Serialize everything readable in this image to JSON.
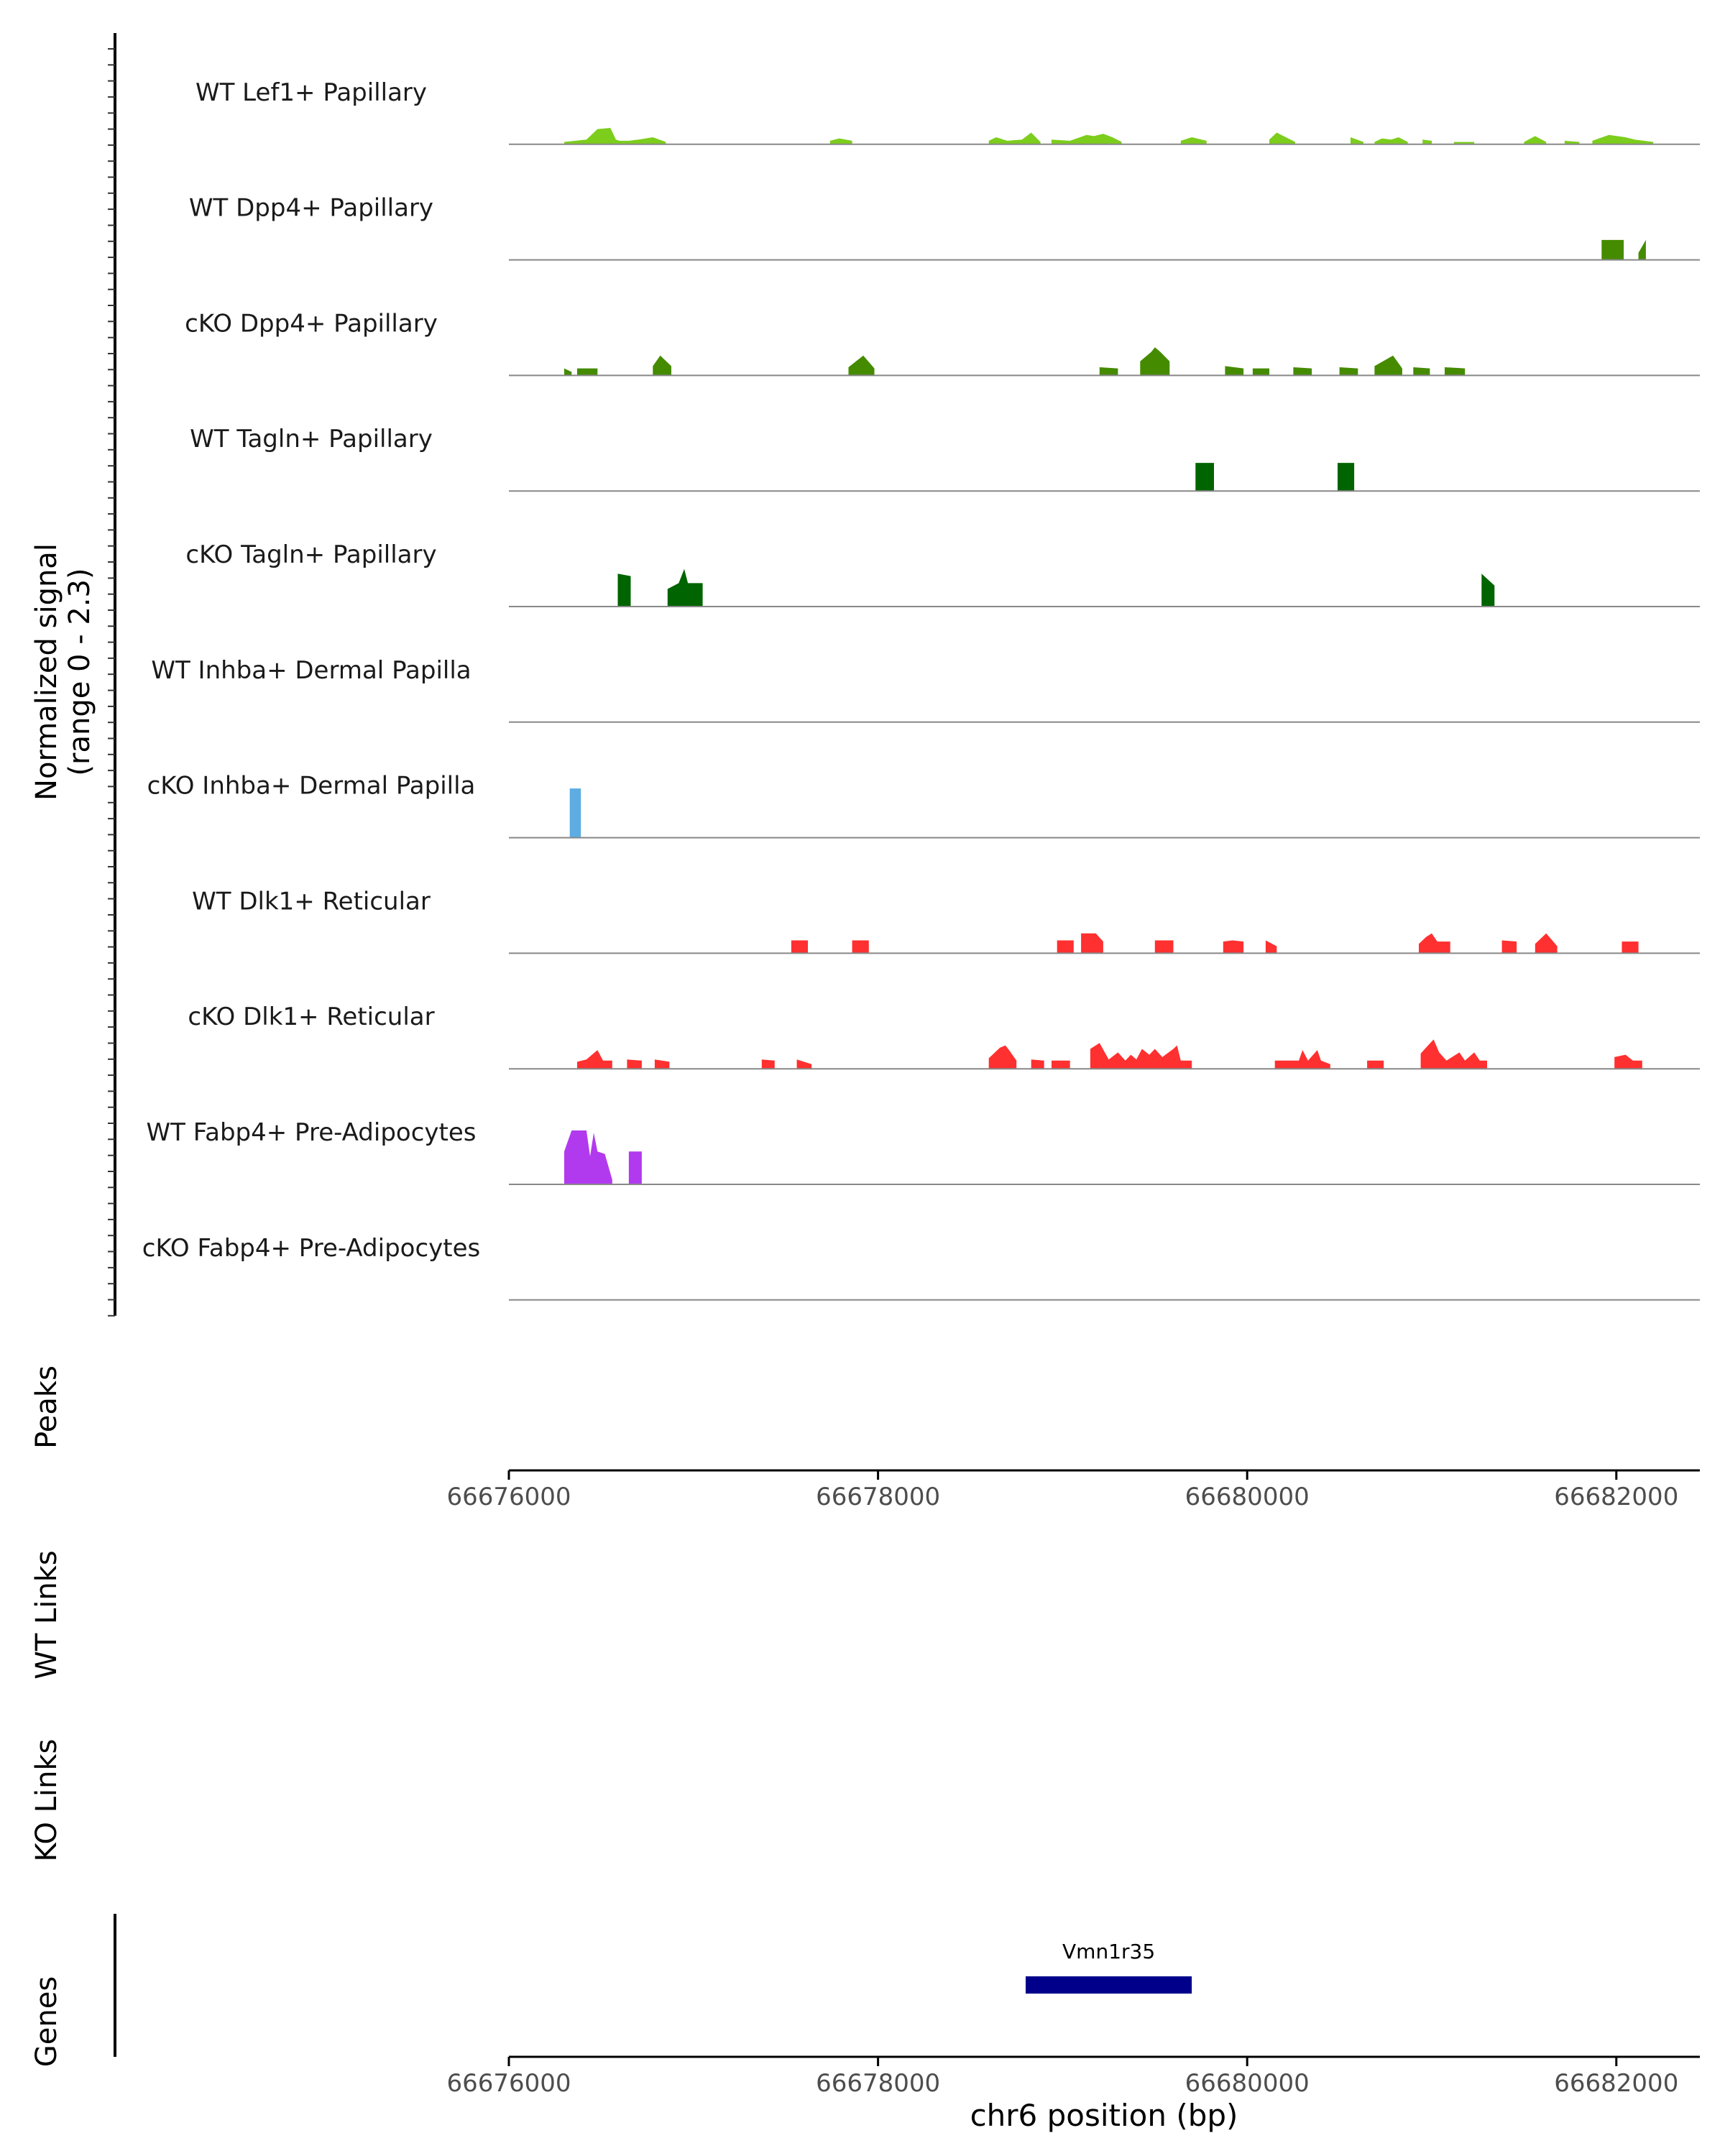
{
  "chart_data": {
    "type": "area",
    "ylabel": "Normalized signal",
    "ylabel_range": "(range 0 - 2.3)",
    "ylim": [
      0,
      2.3
    ],
    "xlim": [
      66676000,
      66682500
    ],
    "xlabel": "chr6 position (bp)",
    "ticks": [
      66676000,
      66678000,
      66680000,
      66682000
    ],
    "tick_labels": [
      "66676000",
      "66678000",
      "66680000",
      "66682000"
    ],
    "tracks": [
      {
        "name": "WT Lef1+ Papillary",
        "color": "#7CCD1C",
        "segments": [
          [
            [
              66676300,
              0.1
            ],
            [
              66676420,
              0.2
            ],
            [
              66676480,
              0.65
            ],
            [
              66676550,
              0.7
            ],
            [
              66676580,
              0.2
            ],
            [
              66676600,
              0.15
            ],
            [
              66676650,
              0.15
            ],
            [
              66676700,
              0.2
            ],
            [
              66676780,
              0.3
            ],
            [
              66676850,
              0.1
            ]
          ],
          [
            [
              66677740,
              0.15
            ],
            [
              66677790,
              0.25
            ],
            [
              66677860,
              0.15
            ]
          ],
          [
            [
              66678600,
              0.15
            ],
            [
              66678640,
              0.3
            ],
            [
              66678700,
              0.15
            ],
            [
              66678780,
              0.2
            ],
            [
              66678830,
              0.5
            ],
            [
              66678880,
              0.1
            ]
          ],
          [
            [
              66678940,
              0.2
            ],
            [
              66679040,
              0.15
            ],
            [
              66679130,
              0.4
            ],
            [
              66679170,
              0.35
            ],
            [
              66679220,
              0.45
            ],
            [
              66679270,
              0.3
            ],
            [
              66679320,
              0.1
            ]
          ],
          [
            [
              66679640,
              0.15
            ],
            [
              66679700,
              0.3
            ],
            [
              66679780,
              0.15
            ]
          ],
          [
            [
              66680120,
              0.2
            ],
            [
              66680160,
              0.5
            ],
            [
              66680260,
              0.1
            ]
          ],
          [
            [
              66680560,
              0.3
            ],
            [
              66680630,
              0.1
            ]
          ],
          [
            [
              66680690,
              0.1
            ],
            [
              66680730,
              0.25
            ],
            [
              66680780,
              0.2
            ],
            [
              66680820,
              0.3
            ],
            [
              66680870,
              0.1
            ]
          ],
          [
            [
              66680950,
              0.2
            ],
            [
              66681000,
              0.15
            ]
          ],
          [
            [
              66681120,
              0.1
            ],
            [
              66681230,
              0.1
            ]
          ],
          [
            [
              66681500,
              0.1
            ],
            [
              66681560,
              0.35
            ],
            [
              66681620,
              0.1
            ]
          ],
          [
            [
              66681720,
              0.15
            ],
            [
              66681800,
              0.1
            ]
          ],
          [
            [
              66681870,
              0.15
            ],
            [
              66681960,
              0.4
            ],
            [
              66682050,
              0.3
            ],
            [
              66682100,
              0.2
            ],
            [
              66682150,
              0.15
            ],
            [
              66682200,
              0.1
            ]
          ]
        ]
      },
      {
        "name": "WT Dpp4+ Papillary",
        "color": "#458B00",
        "segments": [
          [
            [
              66681920,
              0.85
            ],
            [
              66682040,
              0.85
            ]
          ],
          [
            [
              66682120,
              0.3
            ],
            [
              66682160,
              0.85
            ]
          ]
        ]
      },
      {
        "name": "cKO Dpp4+ Papillary",
        "color": "#458B00",
        "segments": [
          [
            [
              66676300,
              0.3
            ],
            [
              66676340,
              0.15
            ]
          ],
          [
            [
              66676370,
              0.3
            ],
            [
              66676480,
              0.3
            ]
          ],
          [
            [
              66676780,
              0.4
            ],
            [
              66676820,
              0.85
            ],
            [
              66676880,
              0.4
            ]
          ],
          [
            [
              66677840,
              0.35
            ],
            [
              66677920,
              0.85
            ],
            [
              66677980,
              0.3
            ]
          ],
          [
            [
              66679200,
              0.35
            ],
            [
              66679300,
              0.3
            ]
          ],
          [
            [
              66679420,
              0.6
            ],
            [
              66679480,
              1.0
            ],
            [
              66679500,
              1.2
            ],
            [
              66679530,
              1.0
            ],
            [
              66679580,
              0.6
            ]
          ],
          [
            [
              66679880,
              0.4
            ],
            [
              66679980,
              0.3
            ]
          ],
          [
            [
              66680030,
              0.3
            ],
            [
              66680120,
              0.3
            ]
          ],
          [
            [
              66680250,
              0.35
            ],
            [
              66680350,
              0.3
            ]
          ],
          [
            [
              66680500,
              0.35
            ],
            [
              66680600,
              0.3
            ]
          ],
          [
            [
              66680690,
              0.4
            ],
            [
              66680790,
              0.85
            ],
            [
              66680840,
              0.3
            ]
          ],
          [
            [
              66680900,
              0.35
            ],
            [
              66680990,
              0.3
            ]
          ],
          [
            [
              66681070,
              0.35
            ],
            [
              66681180,
              0.3
            ]
          ]
        ]
      },
      {
        "name": "WT Tagln+ Papillary",
        "color": "#006400",
        "segments": [
          [
            [
              66679720,
              1.2
            ],
            [
              66679820,
              1.2
            ]
          ],
          [
            [
              66680490,
              1.2
            ],
            [
              66680580,
              1.2
            ]
          ]
        ]
      },
      {
        "name": "cKO Tagln+ Papillary",
        "color": "#006400",
        "segments": [
          [
            [
              66676590,
              1.4
            ],
            [
              66676660,
              1.3
            ]
          ],
          [
            [
              66676860,
              0.75
            ],
            [
              66676920,
              1.0
            ],
            [
              66676950,
              1.6
            ],
            [
              66676970,
              1.0
            ],
            [
              66677050,
              1.0
            ]
          ],
          [
            [
              66681270,
              1.4
            ],
            [
              66681340,
              0.9
            ]
          ]
        ]
      },
      {
        "name": "WT Inhba+ Dermal Papilla",
        "color": "#5DADE2",
        "segments": []
      },
      {
        "name": "cKO Inhba+ Dermal Papilla",
        "color": "#5DADE2",
        "segments": [
          [
            [
              66676330,
              2.1
            ],
            [
              66676390,
              2.1
            ]
          ]
        ]
      },
      {
        "name": "WT Dlk1+ Reticular",
        "color": "#FF3030",
        "segments": [
          [
            [
              66677530,
              0.55
            ],
            [
              66677620,
              0.55
            ]
          ],
          [
            [
              66677860,
              0.55
            ],
            [
              66677950,
              0.55
            ]
          ],
          [
            [
              66678970,
              0.55
            ],
            [
              66679060,
              0.55
            ]
          ],
          [
            [
              66679100,
              0.85
            ],
            [
              66679180,
              0.85
            ],
            [
              66679220,
              0.5
            ]
          ],
          [
            [
              66679500,
              0.55
            ],
            [
              66679600,
              0.55
            ]
          ],
          [
            [
              66679870,
              0.5
            ],
            [
              66679920,
              0.55
            ],
            [
              66679980,
              0.5
            ]
          ],
          [
            [
              66680100,
              0.55
            ],
            [
              66680160,
              0.3
            ]
          ],
          [
            [
              66680930,
              0.4
            ],
            [
              66680970,
              0.7
            ],
            [
              66681000,
              0.85
            ],
            [
              66681030,
              0.5
            ],
            [
              66681100,
              0.5
            ]
          ],
          [
            [
              66681380,
              0.55
            ],
            [
              66681460,
              0.5
            ]
          ],
          [
            [
              66681560,
              0.4
            ],
            [
              66681620,
              0.85
            ],
            [
              66681680,
              0.3
            ]
          ],
          [
            [
              66682030,
              0.5
            ],
            [
              66682120,
              0.5
            ]
          ]
        ]
      },
      {
        "name": "cKO Dlk1+ Reticular",
        "color": "#FF3030",
        "segments": [
          [
            [
              66676370,
              0.3
            ],
            [
              66676420,
              0.4
            ],
            [
              66676450,
              0.6
            ],
            [
              66676480,
              0.8
            ],
            [
              66676510,
              0.35
            ],
            [
              66676560,
              0.35
            ]
          ],
          [
            [
              66676640,
              0.4
            ],
            [
              66676720,
              0.35
            ]
          ],
          [
            [
              66676790,
              0.4
            ],
            [
              66676870,
              0.3
            ]
          ],
          [
            [
              66677370,
              0.4
            ],
            [
              66677440,
              0.35
            ]
          ],
          [
            [
              66677560,
              0.4
            ],
            [
              66677640,
              0.2
            ]
          ],
          [
            [
              66678600,
              0.45
            ],
            [
              66678660,
              0.9
            ],
            [
              66678690,
              1.0
            ],
            [
              66678710,
              0.8
            ],
            [
              66678750,
              0.35
            ]
          ],
          [
            [
              66678830,
              0.4
            ],
            [
              66678900,
              0.35
            ]
          ],
          [
            [
              66678940,
              0.35
            ],
            [
              66679040,
              0.35
            ]
          ],
          [
            [
              66679150,
              0.85
            ],
            [
              66679200,
              1.1
            ],
            [
              66679250,
              0.4
            ],
            [
              66679300,
              0.7
            ],
            [
              66679340,
              0.35
            ],
            [
              66679370,
              0.6
            ],
            [
              66679400,
              0.4
            ],
            [
              66679430,
              0.85
            ],
            [
              66679470,
              0.6
            ],
            [
              66679500,
              0.85
            ],
            [
              66679540,
              0.5
            ],
            [
              66679600,
              0.85
            ],
            [
              66679620,
              1.0
            ],
            [
              66679640,
              0.35
            ],
            [
              66679700,
              0.35
            ]
          ],
          [
            [
              66680150,
              0.35
            ],
            [
              66680280,
              0.35
            ],
            [
              66680300,
              0.8
            ],
            [
              66680330,
              0.35
            ],
            [
              66680380,
              0.8
            ],
            [
              66680400,
              0.35
            ],
            [
              66680450,
              0.2
            ]
          ],
          [
            [
              66680650,
              0.35
            ],
            [
              66680740,
              0.35
            ]
          ],
          [
            [
              66680940,
              0.65
            ],
            [
              66680980,
              1.0
            ],
            [
              66681010,
              1.25
            ],
            [
              66681040,
              0.7
            ],
            [
              66681080,
              0.35
            ],
            [
              66681150,
              0.7
            ],
            [
              66681180,
              0.35
            ],
            [
              66681230,
              0.7
            ],
            [
              66681260,
              0.35
            ],
            [
              66681300,
              0.35
            ]
          ],
          [
            [
              66681990,
              0.5
            ],
            [
              66682050,
              0.6
            ],
            [
              66682090,
              0.35
            ],
            [
              66682140,
              0.35
            ]
          ]
        ]
      },
      {
        "name": "WT Fabp4+ Pre-Adipocytes",
        "color": "#B23AEE",
        "segments": [
          [
            [
              66676300,
              1.4
            ],
            [
              66676340,
              2.3
            ],
            [
              66676420,
              2.3
            ],
            [
              66676440,
              1.2
            ],
            [
              66676460,
              2.2
            ],
            [
              66676480,
              1.4
            ],
            [
              66676520,
              1.3
            ],
            [
              66676560,
              0.2
            ]
          ],
          [
            [
              66676650,
              1.4
            ],
            [
              66676720,
              1.4
            ]
          ]
        ]
      },
      {
        "name": "cKO Fabp4+ Pre-Adipocytes",
        "color": "#B23AEE",
        "segments": []
      }
    ],
    "panel_labels": [
      "Peaks",
      "WT Links",
      "KO Links",
      "Genes"
    ],
    "gene": {
      "name": "Vmn1r35",
      "start": 66678800,
      "end": 66679700,
      "color": "#00008B"
    }
  }
}
